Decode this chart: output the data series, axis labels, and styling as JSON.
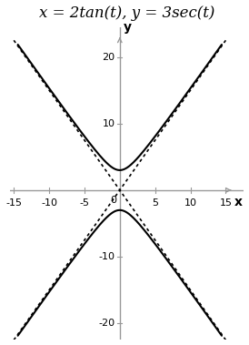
{
  "title": "x = 2tan(t), y = 3sec(t)",
  "title_fontsize": 12,
  "xlim": [
    -15,
    15
  ],
  "ylim": [
    -22,
    22
  ],
  "xticks": [
    -15,
    -10,
    -5,
    5,
    10,
    15
  ],
  "yticks": [
    -20,
    -10,
    10,
    20
  ],
  "xlabel": "x",
  "ylabel": "y",
  "curve_color": "#000000",
  "asymptote_color": "#000000",
  "background_color": "#ffffff",
  "axis_color": "#999999",
  "a": 2,
  "b": 3,
  "asymptote_slope": 1.5
}
